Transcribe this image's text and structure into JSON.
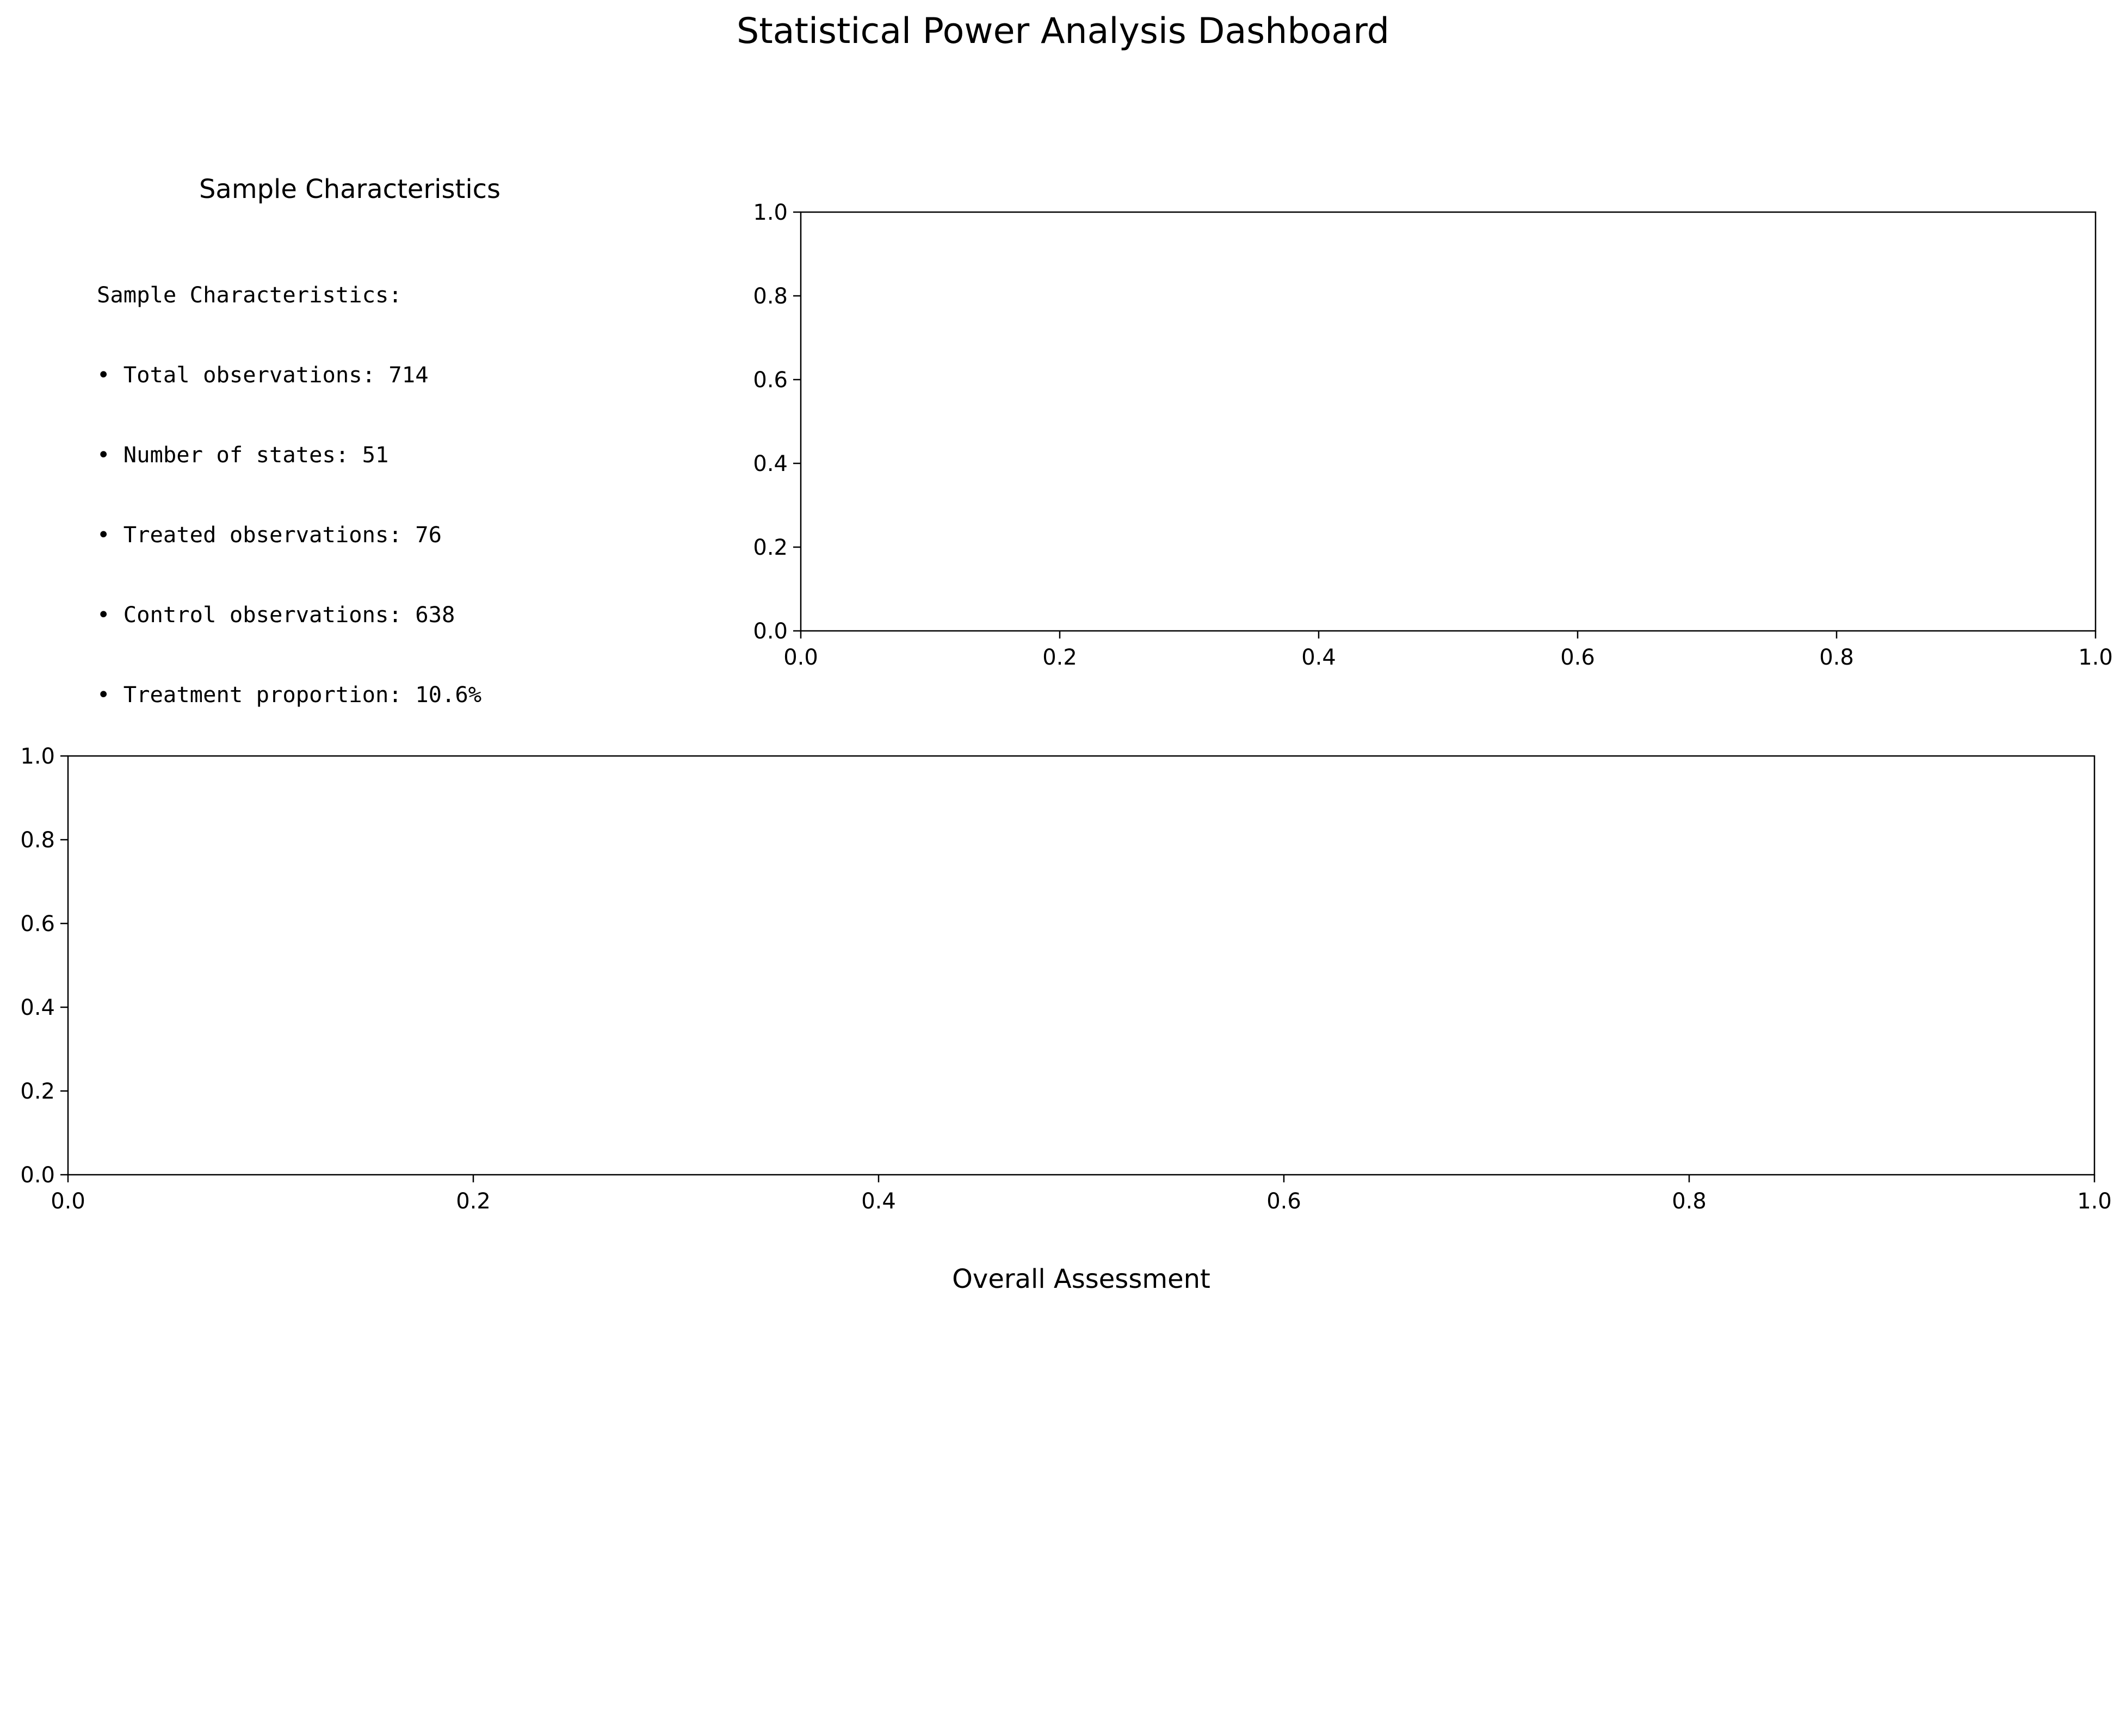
{
  "title": "Statistical Power Analysis Dashboard",
  "sample_panel": {
    "title": "Sample Characteristics",
    "lines": [
      "Sample Characteristics:",
      "• Total observations: 714",
      "• Number of states: 51",
      "• Treated observations: 76",
      "• Control observations: 638",
      "• Treatment proportion: 10.6%"
    ]
  },
  "assessment_panel": {
    "title": "Overall Assessment"
  },
  "chart_data": [
    {
      "type": "line",
      "title": "",
      "xlabel": "",
      "ylabel": "",
      "xlim": [
        0,
        1
      ],
      "ylim": [
        0,
        1
      ],
      "xticks": [
        "0.0",
        "0.2",
        "0.4",
        "0.6",
        "0.8",
        "1.0"
      ],
      "yticks": [
        "0.0",
        "0.2",
        "0.4",
        "0.6",
        "0.8",
        "1.0"
      ],
      "series": [],
      "grid": false
    },
    {
      "type": "line",
      "title": "",
      "xlabel": "",
      "ylabel": "",
      "xlim": [
        0,
        1
      ],
      "ylim": [
        0,
        1
      ],
      "xticks": [
        "0.0",
        "0.2",
        "0.4",
        "0.6",
        "0.8",
        "1.0"
      ],
      "yticks": [
        "0.0",
        "0.2",
        "0.4",
        "0.6",
        "0.8",
        "1.0"
      ],
      "series": [],
      "grid": false
    }
  ]
}
